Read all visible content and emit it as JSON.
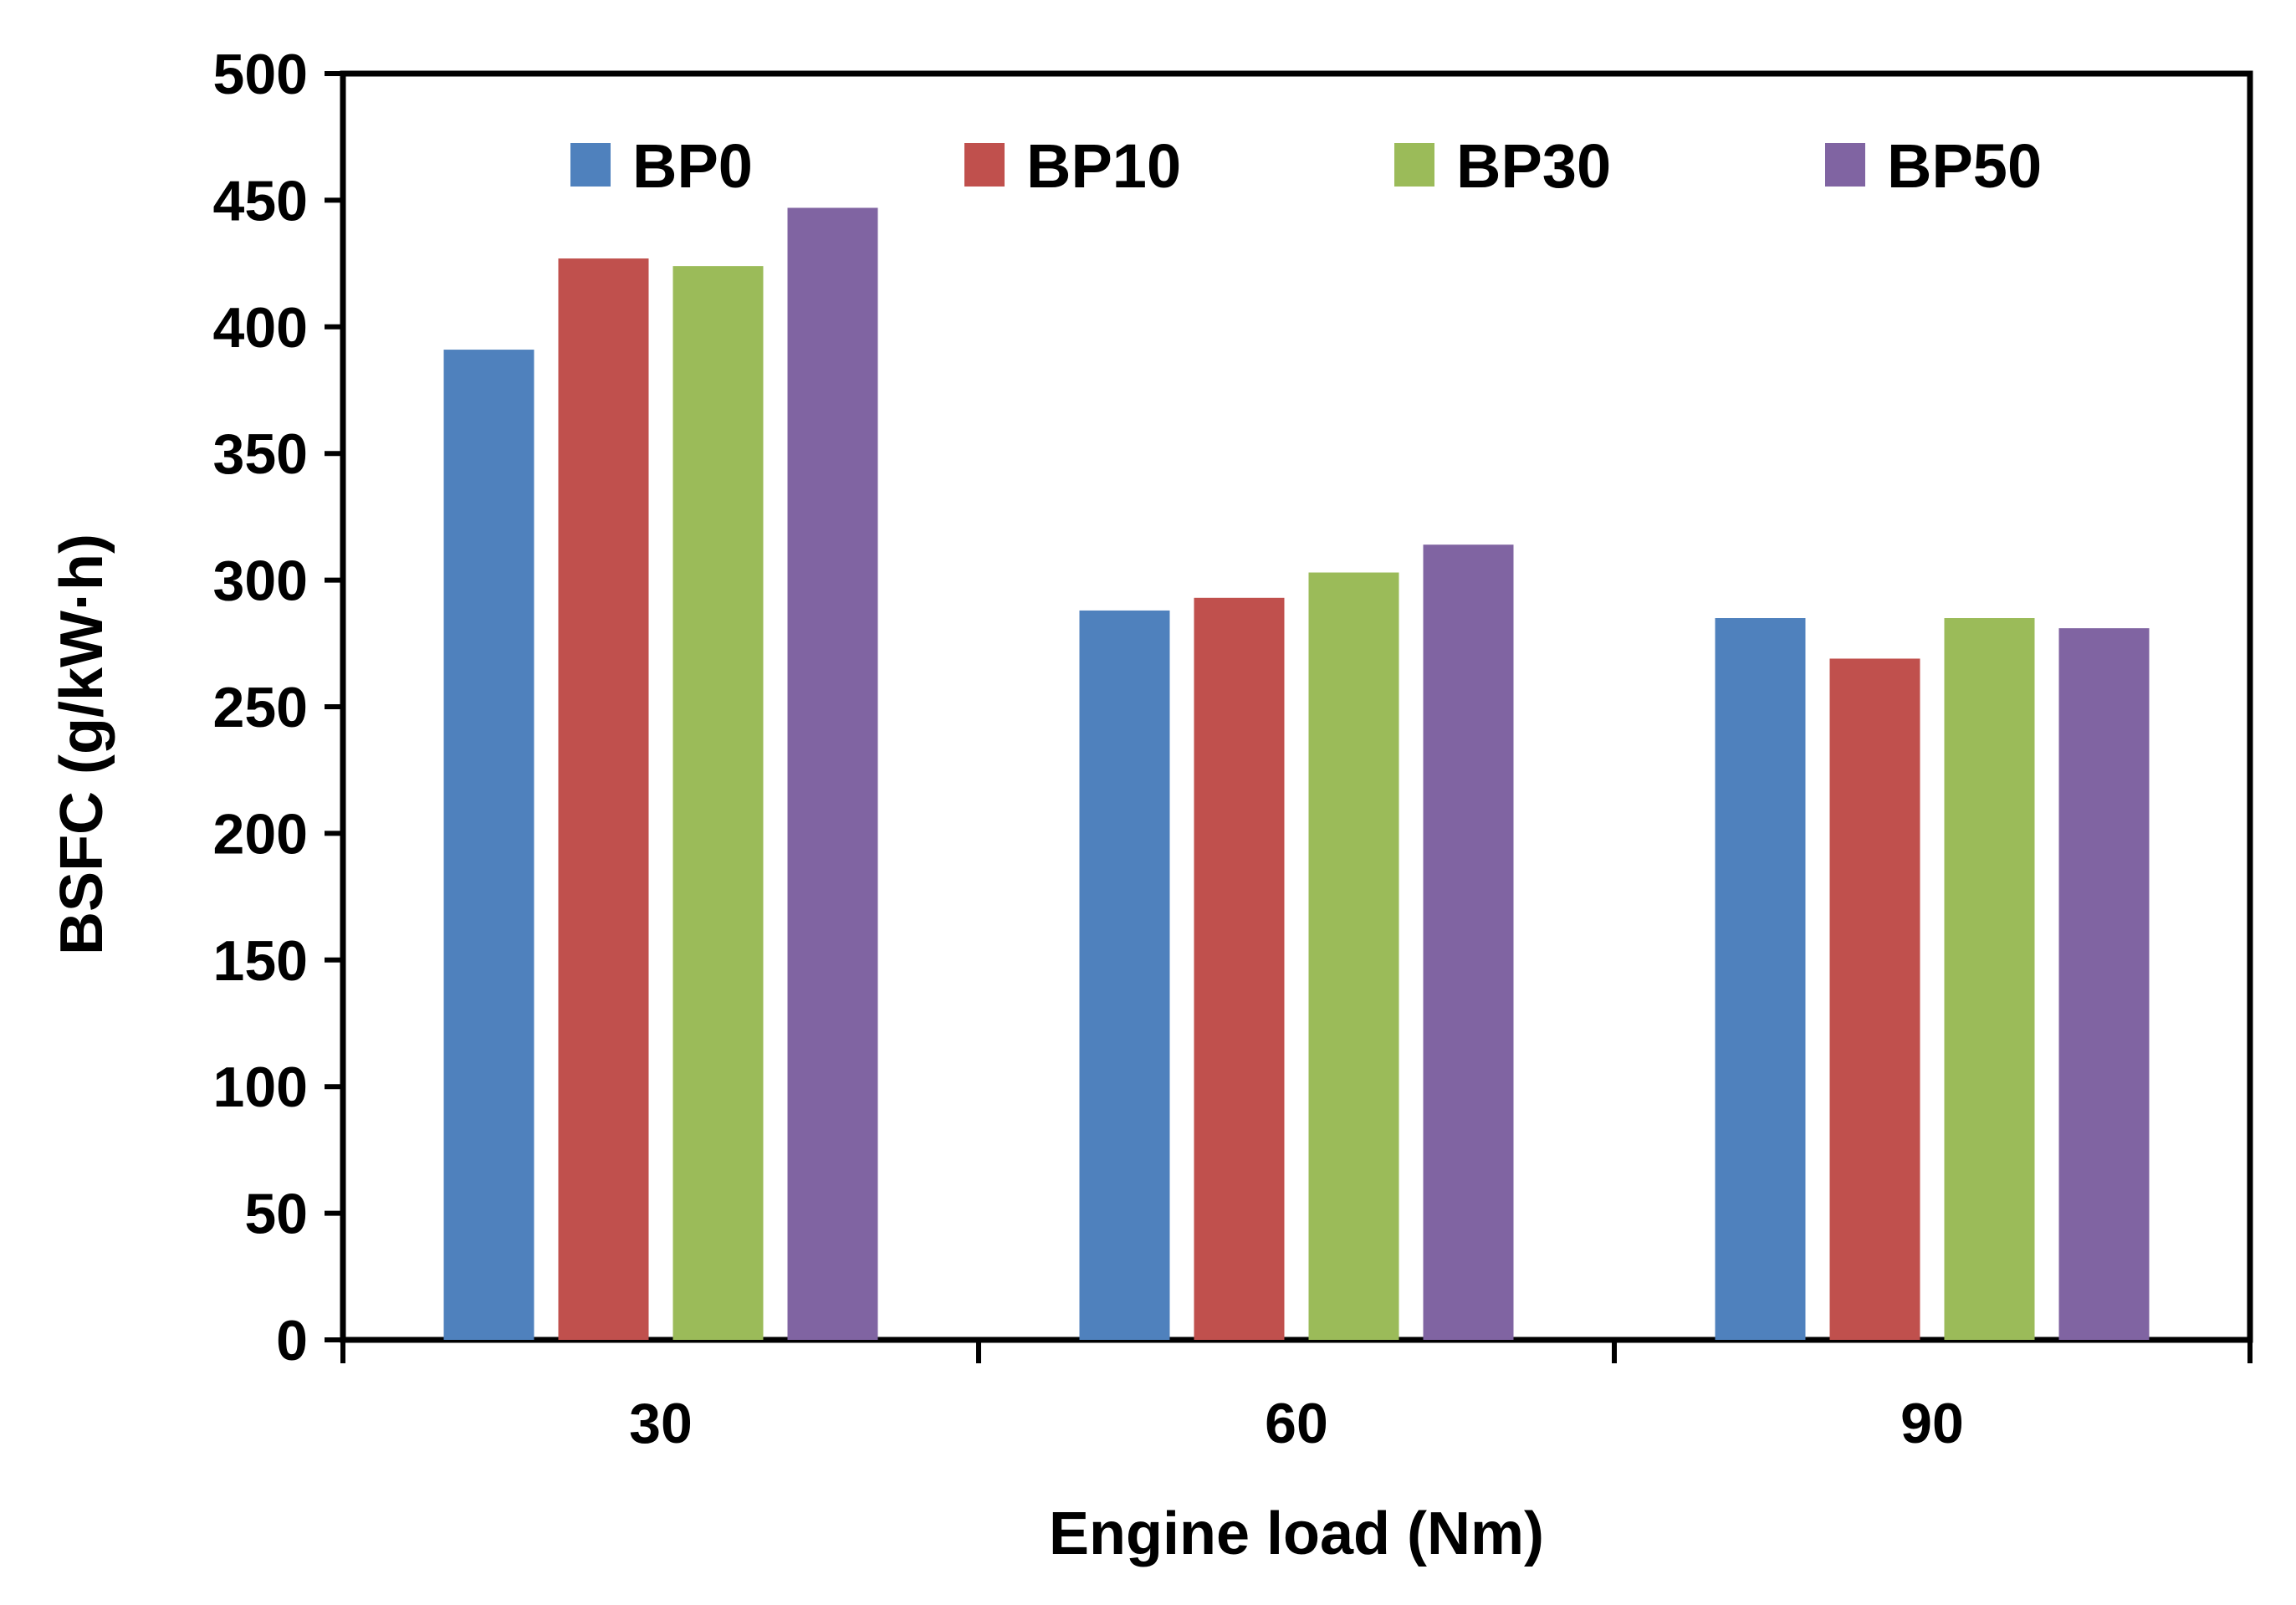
{
  "chart_data": {
    "type": "bar",
    "title": "",
    "xlabel": "Engine load (Nm)",
    "ylabel": "BSFC (g/kW·h)",
    "categories": [
      "30",
      "60",
      "90"
    ],
    "ylim": [
      0,
      500
    ],
    "yticks": [
      0,
      50,
      100,
      150,
      200,
      250,
      300,
      350,
      400,
      450,
      500
    ],
    "grid": false,
    "legend_position": "top-inside",
    "series": [
      {
        "name": "BP0",
        "color": "#4f81bd",
        "values": [
          391,
          288,
          285
        ]
      },
      {
        "name": "BP10",
        "color": "#c0504d",
        "values": [
          427,
          293,
          269
        ]
      },
      {
        "name": "BP30",
        "color": "#9bbb59",
        "values": [
          424,
          303,
          285
        ]
      },
      {
        "name": "BP50",
        "color": "#8064a2",
        "values": [
          447,
          314,
          281
        ]
      }
    ]
  }
}
